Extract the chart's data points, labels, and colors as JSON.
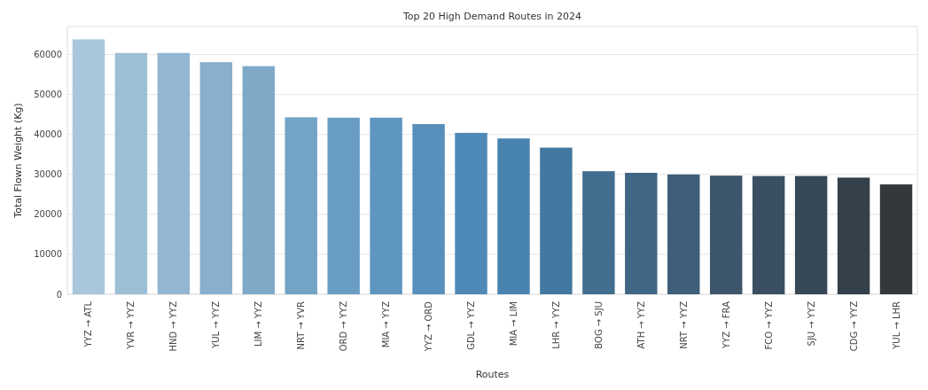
{
  "chart_data": {
    "type": "bar",
    "title": "Top 20 High Demand Routes in 2024",
    "xlabel": "Routes",
    "ylabel": "Total Flown Weight (Kg)",
    "categories": [
      "YYZ → ATL",
      "YVR → YYZ",
      "HND → YYZ",
      "YUL → YYZ",
      "LIM → YYZ",
      "NRT → YVR",
      "ORD → YYZ",
      "MIA → YYZ",
      "YYZ → ORD",
      "GDL → YYZ",
      "MIA → LIM",
      "LHR → YYZ",
      "BOG → SJU",
      "ATH → YYZ",
      "NRT → YYZ",
      "YYZ → FRA",
      "FCO → YYZ",
      "SJU → YYZ",
      "CDG → YYZ",
      "YUL → LHR"
    ],
    "values": [
      63800,
      60400,
      60400,
      58100,
      57100,
      44300,
      44200,
      44200,
      42600,
      40400,
      39000,
      36700,
      30800,
      30400,
      30000,
      29700,
      29600,
      29600,
      29200,
      27500
    ],
    "colors": [
      "#a9c6da",
      "#9dbfd6",
      "#93b7d2",
      "#88afcd",
      "#7eaac8",
      "#74a4c5",
      "#699dc3",
      "#5f96bf",
      "#568fbc",
      "#4e89b7",
      "#4883b0",
      "#4379a0",
      "#426f8f",
      "#416685",
      "#3f5e79",
      "#3d566c",
      "#3a4f61",
      "#374856",
      "#34404a",
      "#33383d"
    ],
    "ylim": [
      0,
      67000
    ],
    "yticks": [
      0,
      10000,
      20000,
      30000,
      40000,
      50000,
      60000
    ],
    "grid": "y"
  }
}
